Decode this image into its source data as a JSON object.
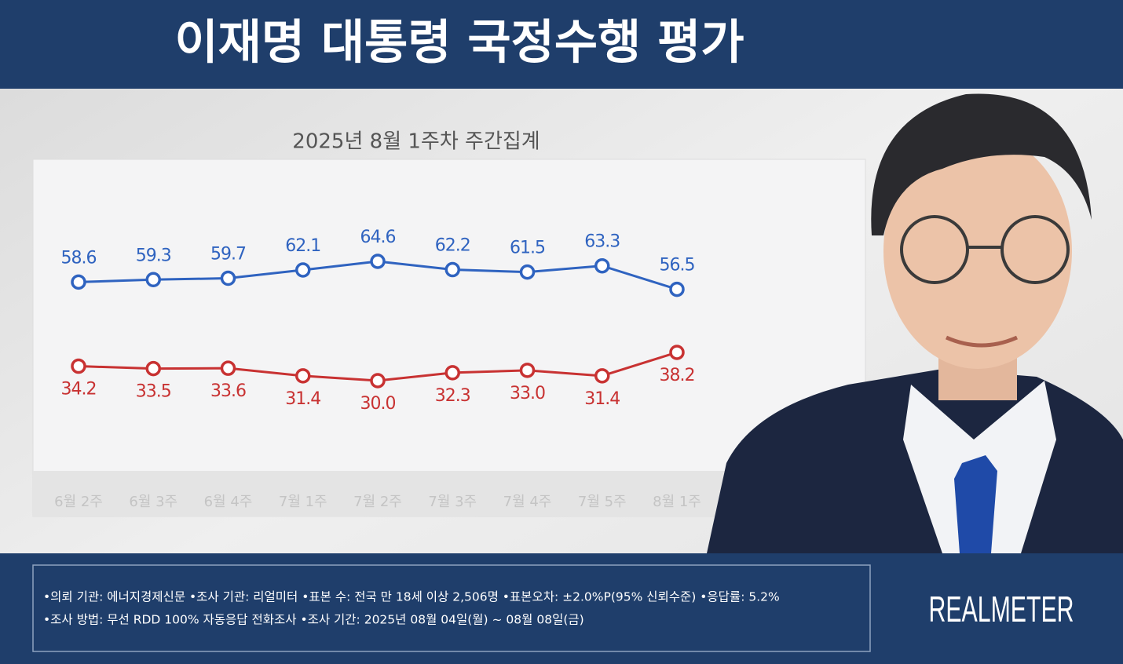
{
  "chart_data": {
    "type": "line",
    "title": "이재명 대통령 국정수행 평가",
    "subtitle": "2025년 8월 1주차 주간집계",
    "categories": [
      "6월 2주",
      "6월 3주",
      "6월 4주",
      "7월 1주",
      "7월 2주",
      "7월 3주",
      "7월 4주",
      "7월 5주",
      "8월 1주"
    ],
    "series": [
      {
        "color": "#2f63c0",
        "values": [
          58.6,
          59.3,
          59.7,
          62.1,
          64.6,
          62.2,
          61.5,
          63.3,
          56.5
        ],
        "value_labels": [
          "58.6",
          "59.3",
          "59.7",
          "62.1",
          "64.6",
          "62.2",
          "61.5",
          "63.3",
          "56.5"
        ]
      },
      {
        "color": "#c83232",
        "values": [
          34.2,
          33.5,
          33.6,
          31.4,
          30.0,
          32.3,
          33.0,
          31.4,
          38.2
        ],
        "value_labels": [
          "34.2",
          "33.5",
          "33.6",
          "31.4",
          "30.0",
          "32.3",
          "33.0",
          "31.4",
          "38.2"
        ]
      }
    ]
  },
  "footer": {
    "lines": [
      "•의뢰 기관: 에너지경제신문 •조사 기관: 리얼미터 •표본 수: 전국 만 18세 이상 2,506명 •표본오차: ±2.0%P(95% 신뢰수준) •응답률: 5.2%",
      "•조사 방법: 무선 RDD 100% 자동응답 전화조사 •조사 기간: 2025년 08월 04일(월) ~ 08월 08일(금)"
    ],
    "brand": "REALMETER"
  }
}
